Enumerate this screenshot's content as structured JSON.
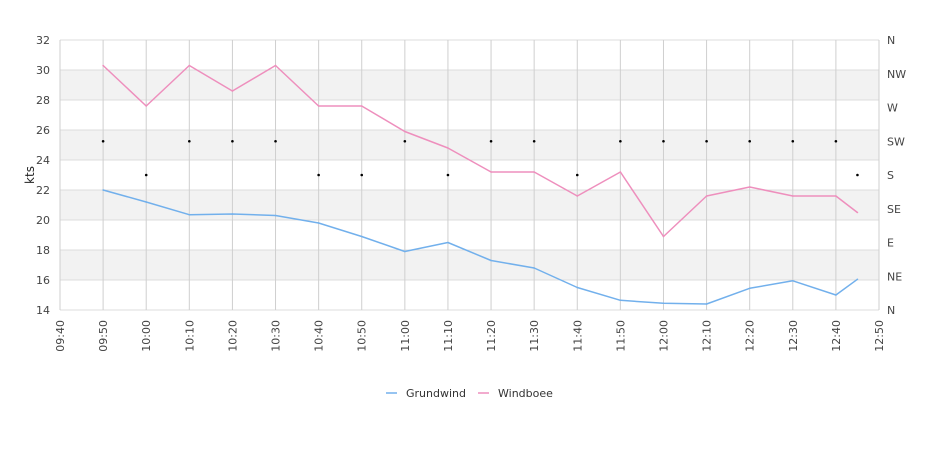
{
  "chart_data": {
    "type": "line",
    "x": [
      "09:50",
      "10:00",
      "10:10",
      "10:20",
      "10:30",
      "10:40",
      "10:50",
      "11:00",
      "11:10",
      "11:20",
      "11:30",
      "11:40",
      "11:50",
      "12:00",
      "12:10",
      "12:20",
      "12:30",
      "12:40",
      "12:45"
    ],
    "x_ticks": [
      "09:40",
      "09:50",
      "10:00",
      "10:10",
      "10:20",
      "10:30",
      "10:40",
      "10:50",
      "11:00",
      "11:10",
      "11:20",
      "11:30",
      "11:40",
      "11:50",
      "12:00",
      "12:10",
      "12:20",
      "12:30",
      "12:40",
      "12:50"
    ],
    "ylabel": "kts",
    "ylim": [
      14,
      32
    ],
    "y_ticks": [
      14,
      16,
      18,
      20,
      22,
      24,
      26,
      28,
      30,
      32
    ],
    "y2_ticks": [
      "N",
      "NE",
      "E",
      "SE",
      "S",
      "SW",
      "W",
      "NW",
      "N"
    ],
    "y2_range_degrees": [
      0,
      360
    ],
    "grid": true,
    "alternating_bands": true,
    "legend_position": "bottom-center",
    "series": [
      {
        "name": "Grundwind",
        "color": "#72b0ec",
        "values": [
          22.0,
          21.2,
          20.35,
          20.4,
          20.3,
          19.8,
          18.9,
          17.9,
          18.5,
          17.3,
          16.8,
          15.5,
          14.65,
          14.45,
          14.4,
          15.45,
          15.95,
          15.0,
          16.05
        ]
      },
      {
        "name": "Windboee",
        "color": "#ee8fbd",
        "values": [
          30.3,
          27.6,
          30.3,
          28.6,
          30.3,
          27.6,
          27.6,
          25.9,
          24.8,
          23.2,
          23.2,
          21.6,
          23.2,
          18.9,
          21.6,
          22.2,
          21.6,
          21.6,
          20.5
        ]
      }
    ],
    "direction_series": {
      "type": "scatter",
      "color": "#000000",
      "values": [
        "SW",
        "S",
        "SW",
        "SW",
        "SW",
        "S",
        "S",
        "SW",
        "S",
        "SW",
        "SW",
        "S",
        "SW",
        "SW",
        "SW",
        "SW",
        "SW",
        "SW",
        "S"
      ]
    }
  }
}
